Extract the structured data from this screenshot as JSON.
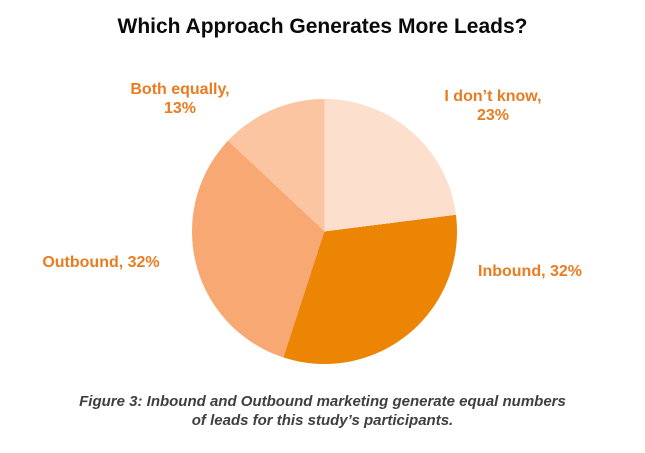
{
  "title": "Which Approach Generates More Leads?",
  "caption": {
    "line1": "Figure 3: Inbound and Outbound marketing generate equal numbers",
    "line2": "of leads for this study’s participants."
  },
  "colors": {
    "background": "#FFFFFF",
    "title_text": "#0A0A0A",
    "caption_text": "#3F3F3F",
    "slice_label_text": "#EA7C20"
  },
  "chart_data": {
    "type": "pie",
    "title": "Which Approach Generates More Leads?",
    "start_angle": "top",
    "direction": "clockwise",
    "legend": "none",
    "label_color": "#EA7C20",
    "categories": [
      "I don’t know",
      "Inbound",
      "Outbound",
      "Both equally"
    ],
    "values": [
      23,
      32,
      32,
      13
    ],
    "slices": [
      {
        "label": "I don’t know",
        "value_pct": 23,
        "color": "#FDDFCD",
        "label_line1": "I don’t know,",
        "label_line2": "23%"
      },
      {
        "label": "Inbound",
        "value_pct": 32,
        "color": "#EC8404",
        "label_line1": "Inbound, 32%"
      },
      {
        "label": "Outbound",
        "value_pct": 32,
        "color": "#F8A872",
        "label_line1": "Outbound, 32%"
      },
      {
        "label": "Both equally",
        "value_pct": 13,
        "color": "#FBC5A2",
        "label_line1": "Both equally,",
        "label_line2": "13%"
      }
    ]
  }
}
